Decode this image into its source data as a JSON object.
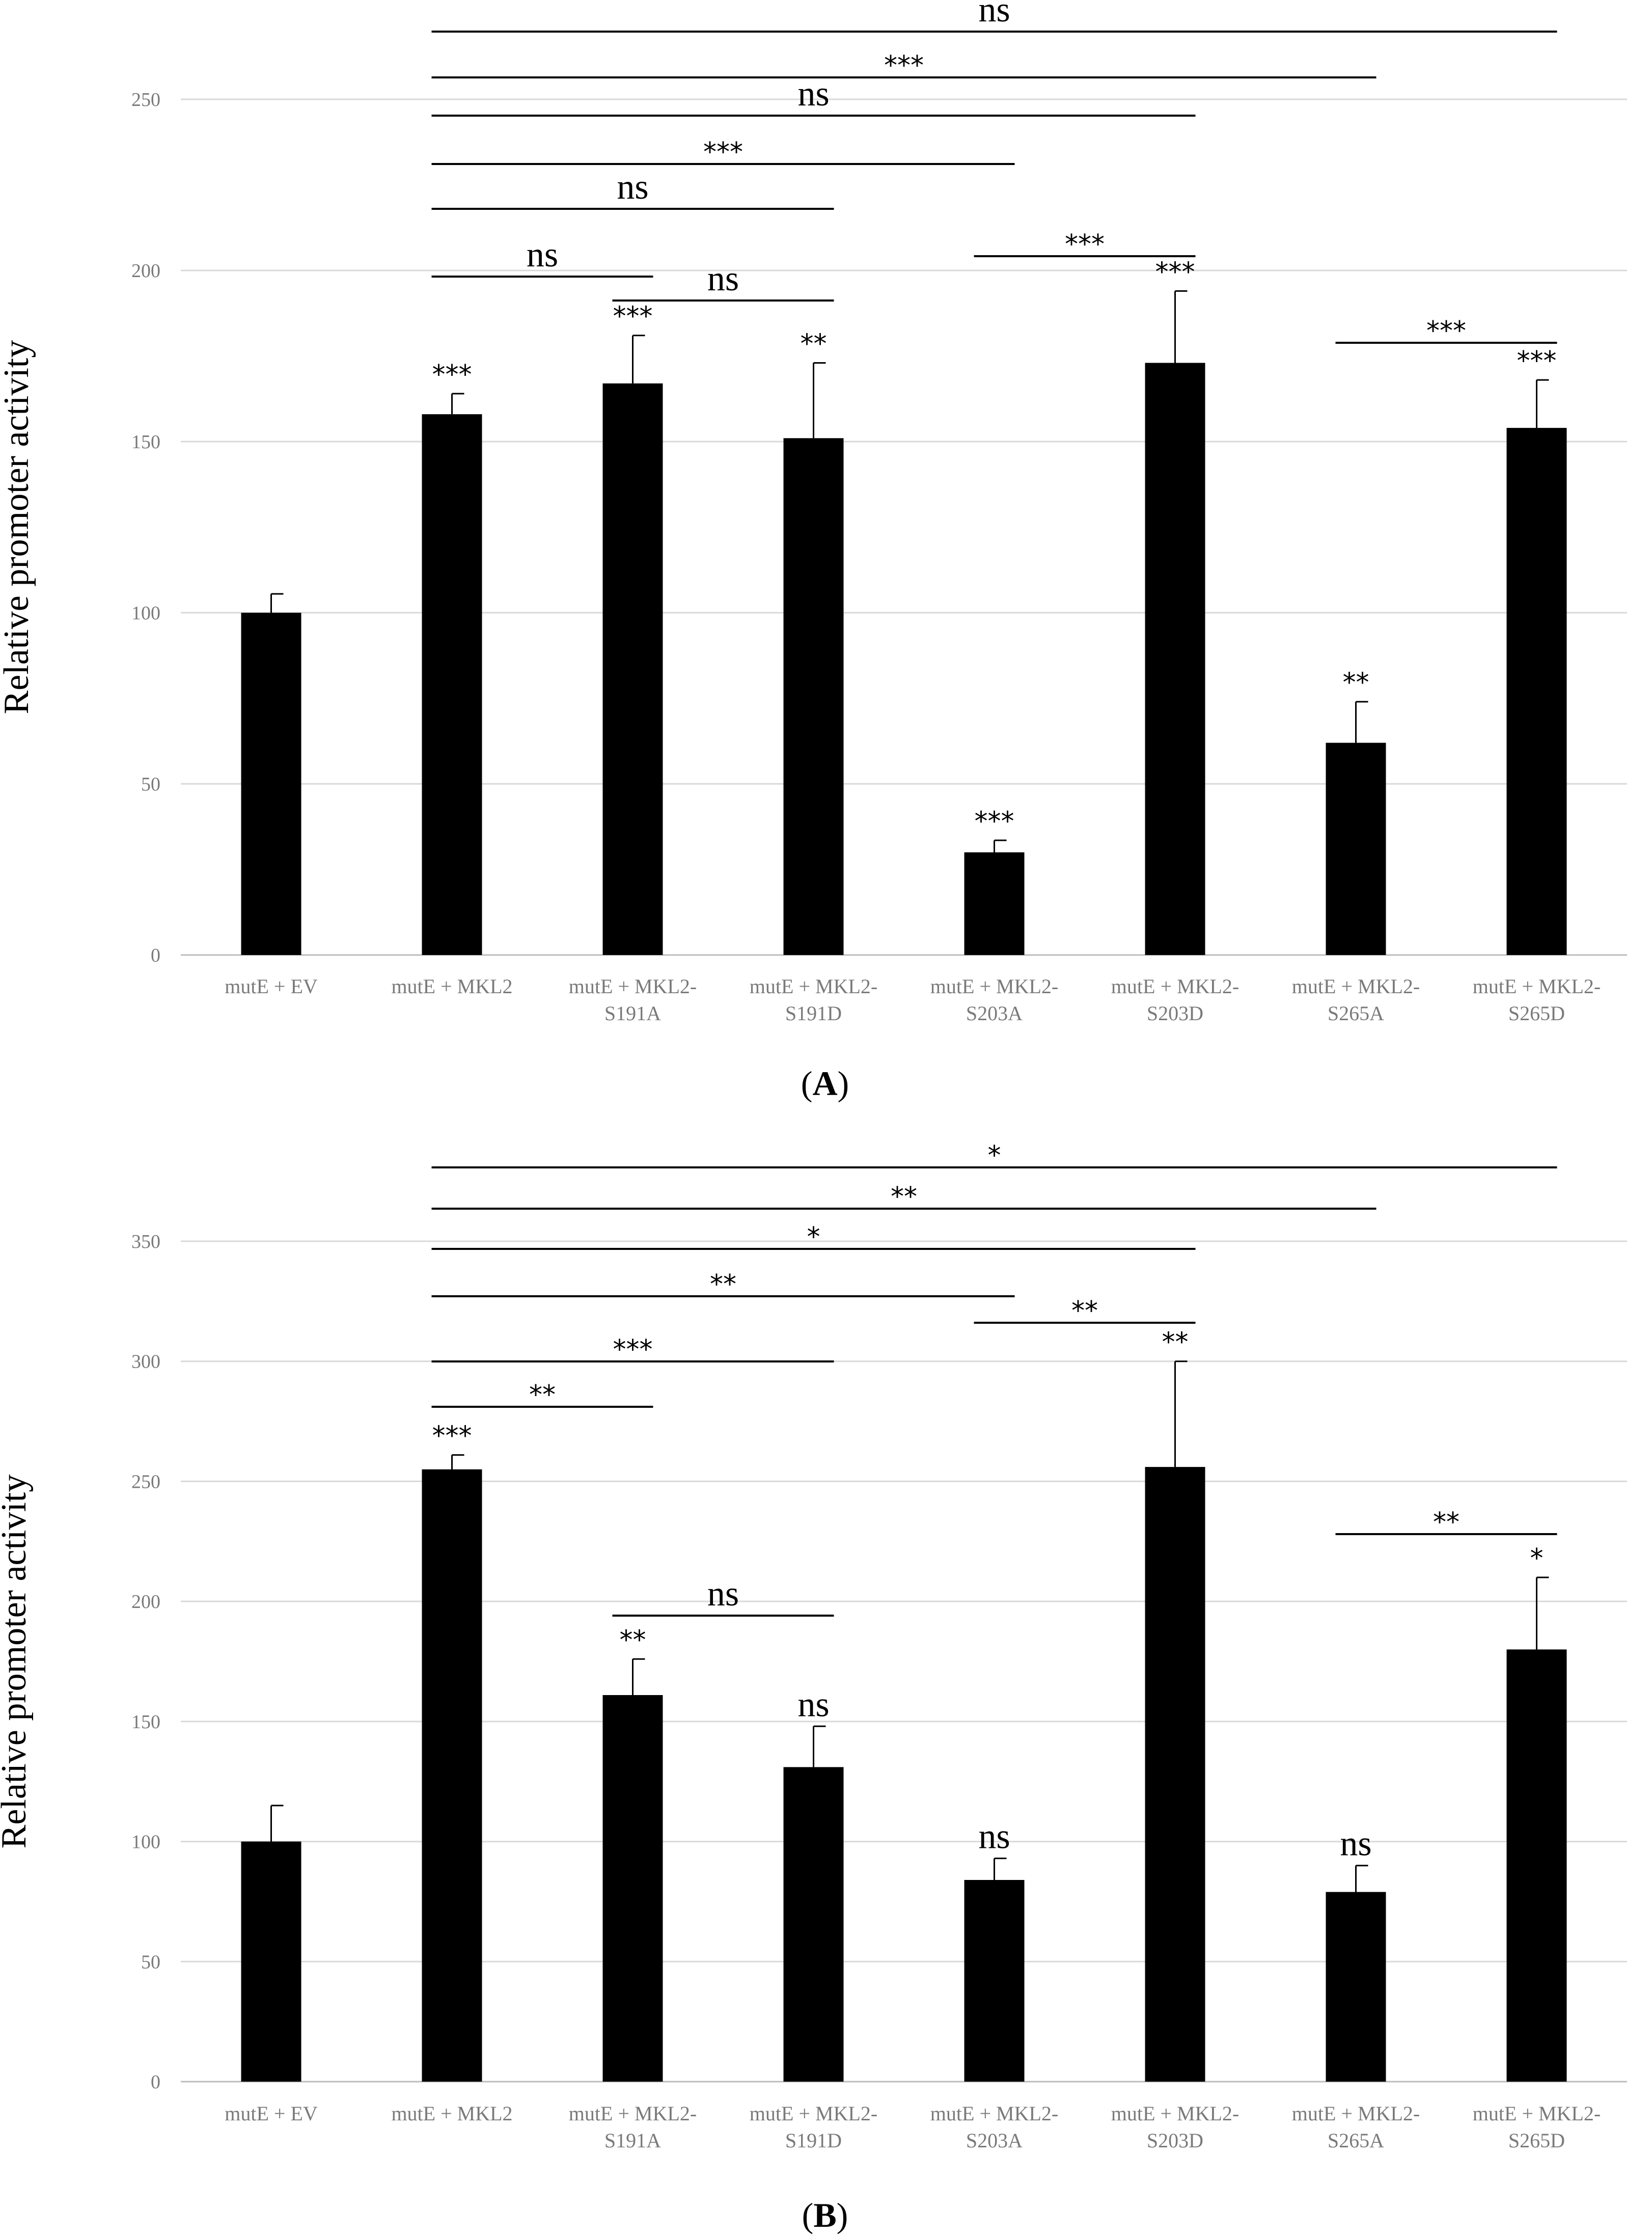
{
  "chart_data": [
    {
      "type": "bar",
      "panel_label": "A",
      "ylabel": "Relative promoter activity",
      "ylim": [
        0,
        250
      ],
      "yticks": [
        0,
        50,
        100,
        150,
        200,
        250
      ],
      "grid": true,
      "categories": [
        [
          "mutE + EV"
        ],
        [
          "mutE + MKL2"
        ],
        [
          "mutE + MKL2-",
          "S191A"
        ],
        [
          "mutE + MKL2-",
          "S191D"
        ],
        [
          "mutE + MKL2-",
          "S203A"
        ],
        [
          "mutE + MKL2-",
          "S203D"
        ],
        [
          "mutE + MKL2-",
          "S265A"
        ],
        [
          "mutE + MKL2-",
          "S265D"
        ]
      ],
      "values": [
        100,
        158,
        167,
        151,
        30,
        173,
        62,
        154
      ],
      "errors": [
        5.5,
        6,
        14,
        22,
        3.5,
        21,
        12,
        14
      ],
      "bar_labels": [
        "",
        "***",
        "***",
        "**",
        "***",
        "***",
        "**",
        "***"
      ],
      "comparisons": [
        {
          "from": 1,
          "to": 7,
          "label": "ns"
        },
        {
          "from": 1,
          "to": 6,
          "label": "***"
        },
        {
          "from": 1,
          "to": 5,
          "label": "ns"
        },
        {
          "from": 1,
          "to": 4,
          "label": "***"
        },
        {
          "from": 1,
          "to": 3,
          "label": "ns"
        },
        {
          "from": 1,
          "to": 2,
          "label": "ns"
        },
        {
          "from": 2,
          "to": 3,
          "label": "ns"
        },
        {
          "from": 4,
          "to": 5,
          "label": "***"
        },
        {
          "from": 6,
          "to": 7,
          "label": "***"
        }
      ]
    },
    {
      "type": "bar",
      "panel_label": "B",
      "ylabel": "Relative promoter activity",
      "ylim": [
        0,
        350
      ],
      "yticks": [
        0,
        50,
        100,
        150,
        200,
        250,
        300,
        350
      ],
      "grid": true,
      "categories": [
        [
          "mutE + EV"
        ],
        [
          "mutE + MKL2"
        ],
        [
          "mutE + MKL2-",
          "S191A"
        ],
        [
          "mutE + MKL2-",
          "S191D"
        ],
        [
          "mutE + MKL2-",
          "S203A"
        ],
        [
          "mutE + MKL2-",
          "S203D"
        ],
        [
          "mutE + MKL2-",
          "S265A"
        ],
        [
          "mutE + MKL2-",
          "S265D"
        ]
      ],
      "values": [
        100,
        255,
        161,
        131,
        84,
        256,
        79,
        180
      ],
      "errors": [
        15,
        6,
        15,
        17,
        9,
        44,
        11,
        30
      ],
      "bar_labels": [
        "",
        "***",
        "**",
        "ns",
        "ns",
        "**",
        "ns",
        "*"
      ],
      "comparisons": [
        {
          "from": 1,
          "to": 7,
          "label": "*"
        },
        {
          "from": 1,
          "to": 6,
          "label": "**"
        },
        {
          "from": 1,
          "to": 5,
          "label": "*"
        },
        {
          "from": 1,
          "to": 4,
          "label": "**"
        },
        {
          "from": 1,
          "to": 3,
          "label": "***"
        },
        {
          "from": 1,
          "to": 2,
          "label": "**"
        },
        {
          "from": 2,
          "to": 3,
          "label": "ns"
        },
        {
          "from": 4,
          "to": 5,
          "label": "**"
        },
        {
          "from": 6,
          "to": 7,
          "label": "**"
        }
      ]
    }
  ]
}
